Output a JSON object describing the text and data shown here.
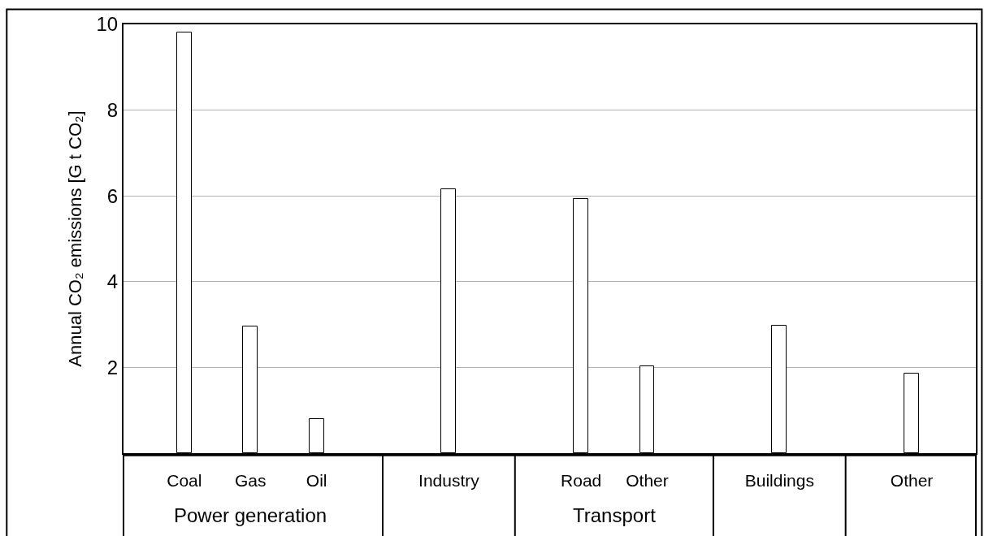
{
  "chart_data": {
    "type": "bar",
    "ylabel": "Annual CO₂ emissions [G t CO₂]",
    "categories": [
      "Coal",
      "Gas",
      "Oil",
      null,
      "Industry",
      null,
      "Road",
      "Other",
      null,
      "Buildings",
      null,
      "Other"
    ],
    "values": [
      9.82,
      2.95,
      0.79,
      null,
      6.16,
      null,
      5.93,
      2.02,
      null,
      2.98,
      null,
      1.85
    ],
    "color": "#ffffff",
    "ylim": [
      0,
      10
    ],
    "yticks": [
      2,
      4,
      6,
      8,
      10
    ],
    "grid": "y",
    "annotations": [
      "Power generation",
      "Transport"
    ]
  }
}
